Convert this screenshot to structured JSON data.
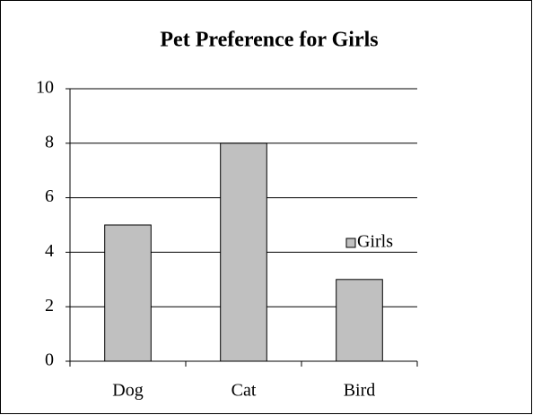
{
  "chart_data": {
    "type": "bar",
    "title": "Pet Preference for Girls",
    "categories": [
      "Dog",
      "Cat",
      "Bird"
    ],
    "series": [
      {
        "name": "Girls",
        "color": "#c0c0c0",
        "values": [
          5,
          8,
          3
        ]
      }
    ],
    "ylim": [
      0,
      10
    ],
    "yticks": [
      0,
      2,
      4,
      6,
      8,
      10
    ],
    "grid": true,
    "legend": "right"
  }
}
